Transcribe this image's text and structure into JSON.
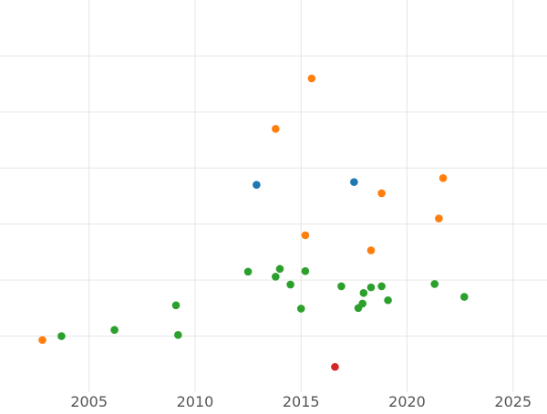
{
  "chart_data": {
    "type": "scatter",
    "title": "",
    "xlabel": "",
    "ylabel": "",
    "xlim": [
      2000.8,
      2026.6
    ],
    "ylim": [
      -0.5,
      6.5
    ],
    "grid": true,
    "legend": "none",
    "x_ticks": [
      2005,
      2010,
      2015,
      2020,
      2025
    ],
    "y_gridlines": [
      0.5,
      1.5,
      2.5,
      3.5,
      4.5,
      5.5
    ],
    "series": [
      {
        "color": "#1f77b4",
        "points": [
          {
            "x": 2012.9,
            "y": 3.2
          },
          {
            "x": 2017.5,
            "y": 3.25
          }
        ]
      },
      {
        "color": "#ff7f0e",
        "points": [
          {
            "x": 2002.8,
            "y": 0.43
          },
          {
            "x": 2013.8,
            "y": 4.2
          },
          {
            "x": 2015.2,
            "y": 2.3
          },
          {
            "x": 2015.5,
            "y": 5.1
          },
          {
            "x": 2018.3,
            "y": 2.03
          },
          {
            "x": 2018.8,
            "y": 3.05
          },
          {
            "x": 2021.5,
            "y": 2.6
          },
          {
            "x": 2021.7,
            "y": 3.32
          }
        ]
      },
      {
        "color": "#2ca02c",
        "points": [
          {
            "x": 2003.7,
            "y": 0.5
          },
          {
            "x": 2006.2,
            "y": 0.61
          },
          {
            "x": 2009.1,
            "y": 1.05
          },
          {
            "x": 2009.2,
            "y": 0.52
          },
          {
            "x": 2012.5,
            "y": 1.65
          },
          {
            "x": 2013.8,
            "y": 1.56
          },
          {
            "x": 2014.0,
            "y": 1.7
          },
          {
            "x": 2014.5,
            "y": 1.42
          },
          {
            "x": 2015.0,
            "y": 0.99
          },
          {
            "x": 2015.2,
            "y": 1.66
          },
          {
            "x": 2016.9,
            "y": 1.39
          },
          {
            "x": 2017.7,
            "y": 1.0
          },
          {
            "x": 2017.9,
            "y": 1.08
          },
          {
            "x": 2017.95,
            "y": 1.27
          },
          {
            "x": 2018.3,
            "y": 1.37
          },
          {
            "x": 2018.8,
            "y": 1.39
          },
          {
            "x": 2019.1,
            "y": 1.14
          },
          {
            "x": 2021.3,
            "y": 1.43
          },
          {
            "x": 2022.7,
            "y": 1.2
          }
        ]
      },
      {
        "color": "#d62728",
        "points": [
          {
            "x": 2016.6,
            "y": -0.05
          }
        ]
      }
    ]
  }
}
